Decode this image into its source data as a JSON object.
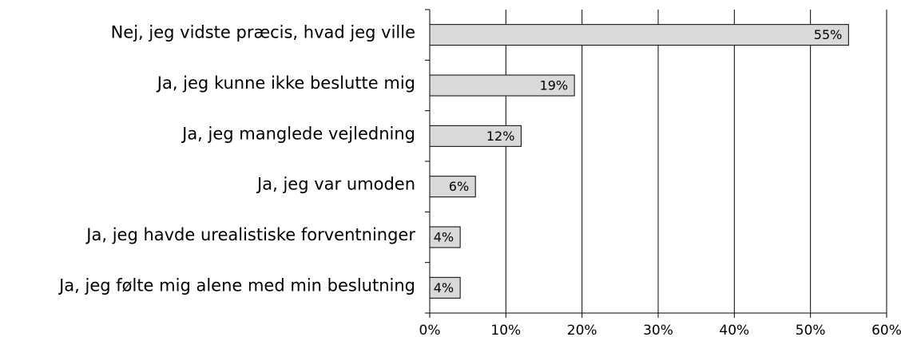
{
  "chart_data": {
    "type": "bar",
    "orientation": "horizontal",
    "categories": [
      "Nej, jeg vidste præcis, hvad jeg ville",
      "Ja, jeg kunne ikke beslutte mig",
      "Ja, jeg manglede vejledning",
      "Ja, jeg var umoden",
      "Ja, jeg havde urealistiske forventninger",
      "Ja, jeg følte mig alene med min beslutning"
    ],
    "values": [
      55,
      19,
      12,
      6,
      4,
      4
    ],
    "value_labels": [
      "55%",
      "19%",
      "12%",
      "6%",
      "4%",
      "4%"
    ],
    "color": "#d9d9d9",
    "xlim": [
      0,
      60
    ],
    "xticks": [
      {
        "value": 0,
        "label": "0%"
      },
      {
        "value": 10,
        "label": "10%"
      },
      {
        "value": 20,
        "label": "20%"
      },
      {
        "value": 30,
        "label": "30%"
      },
      {
        "value": 40,
        "label": "40%"
      },
      {
        "value": 50,
        "label": "50%"
      },
      {
        "value": 60,
        "label": "60%"
      }
    ],
    "grid": true
  }
}
